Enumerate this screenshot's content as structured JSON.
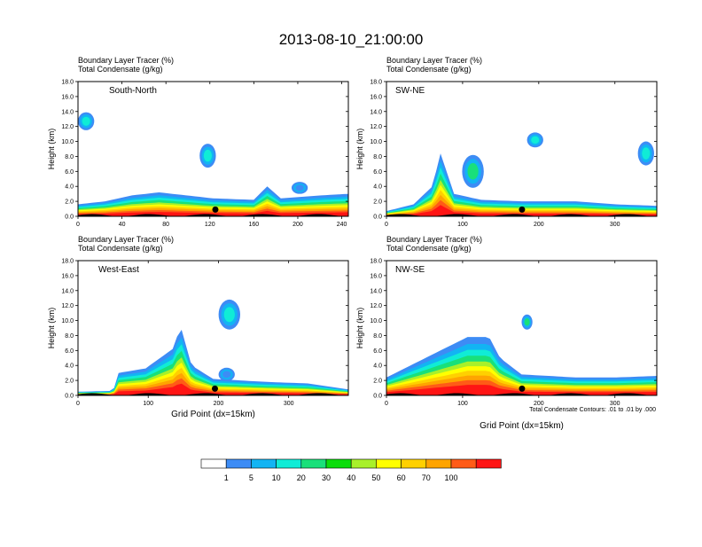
{
  "title": "2013-08-10_21:00:00",
  "subtitle_tracer": "Boundary Layer Tracer   (%)",
  "subtitle_condensate": "Total Condensate   (g/kg)",
  "footnote": "Total Condensate Contours: .01 to .01 by .000",
  "colorbar": {
    "labels": [
      "1",
      "5",
      "10",
      "20",
      "30",
      "40",
      "50",
      "60",
      "70",
      "100"
    ],
    "colors": [
      "#ffffff",
      "#3d8cf5",
      "#12b4f3",
      "#10ecd6",
      "#19e07a",
      "#0bdd0b",
      "#a8f02a",
      "#ffff00",
      "#ffd000",
      "#ffa400",
      "#ff5b17",
      "#ff1414"
    ]
  },
  "chart_data": [
    {
      "type": "heatmap",
      "panel_label": "South-North",
      "ylabel": "Height (km)",
      "xlabel": "",
      "ylim": [
        0,
        18
      ],
      "xlim": [
        0,
        246
      ],
      "x_ticks": [
        "0",
        "40",
        "80",
        "120",
        "160",
        "200",
        "240"
      ],
      "y_ticks": [
        "0.0",
        "2.0",
        "4.0",
        "6.0",
        "8.0",
        "10.0",
        "12.0",
        "14.0",
        "16.0",
        "18.0"
      ],
      "surface_point_x": 125
    },
    {
      "type": "heatmap",
      "panel_label": "SW-NE",
      "ylabel": "Height (km)",
      "xlabel": "",
      "ylim": [
        0,
        18
      ],
      "xlim": [
        0,
        355
      ],
      "x_ticks": [
        "0",
        "100",
        "200",
        "300"
      ],
      "y_ticks": [
        "0.0",
        "2.0",
        "4.0",
        "6.0",
        "8.0",
        "10.0",
        "12.0",
        "14.0",
        "16.0",
        "18.0"
      ],
      "surface_point_x": 178
    },
    {
      "type": "heatmap",
      "panel_label": "West-East",
      "ylabel": "Height (km)",
      "xlabel": "Grid Point (dx=15km)",
      "ylim": [
        0,
        18
      ],
      "xlim": [
        0,
        385
      ],
      "x_ticks": [
        "0",
        "100",
        "200",
        "300"
      ],
      "y_ticks": [
        "0.0",
        "2.0",
        "4.0",
        "6.0",
        "8.0",
        "10.0",
        "12.0",
        "14.0",
        "16.0",
        "18.0"
      ],
      "surface_point_x": 195
    },
    {
      "type": "heatmap",
      "panel_label": "NW-SE",
      "ylabel": "Height (km)",
      "xlabel": "Grid Point (dx=15km)",
      "ylim": [
        0,
        18
      ],
      "xlim": [
        0,
        355
      ],
      "x_ticks": [
        "0",
        "100",
        "200",
        "300"
      ],
      "y_ticks": [
        "0.0",
        "2.0",
        "4.0",
        "6.0",
        "8.0",
        "10.0",
        "12.0",
        "14.0",
        "16.0",
        "18.0"
      ],
      "surface_point_x": 178
    }
  ]
}
